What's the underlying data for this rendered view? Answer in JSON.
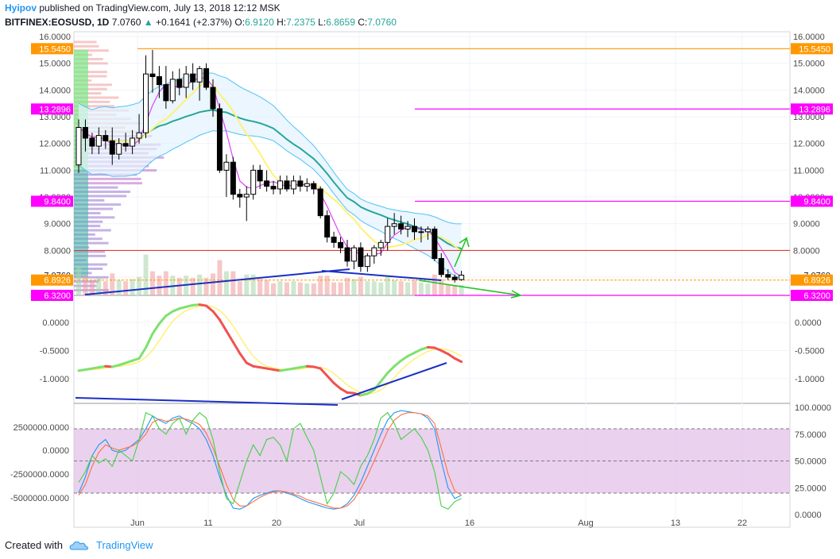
{
  "header": {
    "author": "Hyipov",
    "published_text": "published on TradingView.com, July 13, 2018 12:12 MSK",
    "symbol": "BITFINEX:EOSUSD, 1D",
    "last": "7.0760",
    "change_arrow": "▲",
    "change": "+0.1641 (+2.37%)",
    "o_label": "O:",
    "o_value": "6.9120",
    "h_label": "H:",
    "h_value": "7.2375",
    "l_label": "L:",
    "l_value": "6.8659",
    "c_label": "C:",
    "c_value": "7.0760"
  },
  "colors": {
    "up": "#26a69a",
    "down": "#000000",
    "orange": "#ff9800",
    "magenta": "#ff00ff",
    "red_line": "#e53935",
    "blue_trend": "#1a2fc4",
    "arrow_green": "#22c122"
  },
  "chart_data": [
    {
      "type": "candlestick",
      "name": "EOSUSD daily price",
      "ylim": [
        6.32,
        16.0
      ],
      "y_ticks": [
        "16.0000",
        "15.0000",
        "14.0000",
        "13.0000",
        "12.0000",
        "11.0000",
        "10.0000",
        "9.0000",
        "8.0000",
        "7.0000"
      ],
      "x_ticks": [
        "Jun",
        "11",
        "20",
        "Jul",
        "16",
        "Aug",
        "13",
        "22"
      ],
      "price_labels": [
        {
          "text": "15.5450",
          "value": 15.545,
          "color": "#ff9800"
        },
        {
          "text": "13.2896",
          "value": 13.2896,
          "color": "#ff00ff"
        },
        {
          "text": "9.8400",
          "value": 9.84,
          "color": "#ff00ff"
        },
        {
          "text": "7.0760",
          "value": 7.076,
          "color": "#ffffff"
        },
        {
          "text": "6.8926",
          "value": 6.8926,
          "color": "#ff9800"
        },
        {
          "text": "6.3200",
          "value": 6.32,
          "color": "#ff00ff"
        }
      ],
      "horizontal_lines": [
        {
          "value": 15.545,
          "color": "#ff9800"
        },
        {
          "value": 13.2896,
          "color": "#ff00ff"
        },
        {
          "value": 9.84,
          "color": "#ff00ff"
        },
        {
          "value": 8.0,
          "color": "#e53935"
        },
        {
          "value": 6.8926,
          "color": "#ff9800"
        },
        {
          "value": 6.32,
          "color": "#ff00ff"
        }
      ],
      "candles": [
        {
          "o": 11.2,
          "h": 12.9,
          "l": 10.9,
          "c": 12.6
        },
        {
          "o": 12.6,
          "h": 12.9,
          "l": 11.7,
          "c": 12.2
        },
        {
          "o": 12.2,
          "h": 12.4,
          "l": 11.6,
          "c": 11.9
        },
        {
          "o": 11.9,
          "h": 12.6,
          "l": 11.6,
          "c": 12.3
        },
        {
          "o": 12.3,
          "h": 12.5,
          "l": 11.8,
          "c": 12.1
        },
        {
          "o": 12.1,
          "h": 12.6,
          "l": 11.2,
          "c": 11.6
        },
        {
          "o": 11.6,
          "h": 12.2,
          "l": 11.4,
          "c": 12.0
        },
        {
          "o": 12.0,
          "h": 12.4,
          "l": 11.7,
          "c": 11.9
        },
        {
          "o": 11.9,
          "h": 12.5,
          "l": 11.6,
          "c": 12.2
        },
        {
          "o": 12.2,
          "h": 13.1,
          "l": 12.0,
          "c": 12.4
        },
        {
          "o": 12.4,
          "h": 15.3,
          "l": 12.2,
          "c": 14.6
        },
        {
          "o": 14.6,
          "h": 15.5,
          "l": 13.9,
          "c": 14.5
        },
        {
          "o": 14.5,
          "h": 14.9,
          "l": 13.7,
          "c": 14.2
        },
        {
          "o": 14.2,
          "h": 14.9,
          "l": 13.3,
          "c": 13.6
        },
        {
          "o": 13.6,
          "h": 14.7,
          "l": 13.5,
          "c": 14.4
        },
        {
          "o": 14.4,
          "h": 14.8,
          "l": 13.8,
          "c": 14.1
        },
        {
          "o": 14.1,
          "h": 14.9,
          "l": 13.7,
          "c": 14.6
        },
        {
          "o": 14.6,
          "h": 15.0,
          "l": 14.0,
          "c": 14.3
        },
        {
          "o": 14.3,
          "h": 14.9,
          "l": 13.6,
          "c": 14.8
        },
        {
          "o": 14.8,
          "h": 15.0,
          "l": 14.0,
          "c": 14.1
        },
        {
          "o": 14.1,
          "h": 14.4,
          "l": 13.0,
          "c": 13.3
        },
        {
          "o": 13.3,
          "h": 13.5,
          "l": 10.9,
          "c": 11.0
        },
        {
          "o": 11.0,
          "h": 11.6,
          "l": 10.0,
          "c": 11.3
        },
        {
          "o": 11.3,
          "h": 11.5,
          "l": 9.9,
          "c": 10.1
        },
        {
          "o": 10.1,
          "h": 10.3,
          "l": 9.6,
          "c": 10.0
        },
        {
          "o": 10.0,
          "h": 10.4,
          "l": 9.1,
          "c": 10.1
        },
        {
          "o": 10.1,
          "h": 11.2,
          "l": 9.9,
          "c": 11.0
        },
        {
          "o": 11.0,
          "h": 11.2,
          "l": 10.3,
          "c": 10.6
        },
        {
          "o": 10.6,
          "h": 11.0,
          "l": 10.2,
          "c": 10.4
        },
        {
          "o": 10.4,
          "h": 10.6,
          "l": 10.1,
          "c": 10.3
        },
        {
          "o": 10.3,
          "h": 10.8,
          "l": 10.1,
          "c": 10.6
        },
        {
          "o": 10.6,
          "h": 10.8,
          "l": 10.2,
          "c": 10.3
        },
        {
          "o": 10.3,
          "h": 10.8,
          "l": 10.1,
          "c": 10.6
        },
        {
          "o": 10.6,
          "h": 10.8,
          "l": 10.2,
          "c": 10.4
        },
        {
          "o": 10.4,
          "h": 10.7,
          "l": 10.2,
          "c": 10.5
        },
        {
          "o": 10.5,
          "h": 10.6,
          "l": 10.1,
          "c": 10.3
        },
        {
          "o": 10.3,
          "h": 10.4,
          "l": 9.2,
          "c": 9.3
        },
        {
          "o": 9.3,
          "h": 9.5,
          "l": 8.3,
          "c": 8.5
        },
        {
          "o": 8.5,
          "h": 8.7,
          "l": 8.1,
          "c": 8.3
        },
        {
          "o": 8.3,
          "h": 8.5,
          "l": 7.9,
          "c": 8.1
        },
        {
          "o": 8.1,
          "h": 8.4,
          "l": 7.4,
          "c": 7.6
        },
        {
          "o": 7.6,
          "h": 8.2,
          "l": 7.3,
          "c": 8.1
        },
        {
          "o": 8.1,
          "h": 8.3,
          "l": 7.2,
          "c": 7.4
        },
        {
          "o": 7.4,
          "h": 7.9,
          "l": 7.2,
          "c": 7.8
        },
        {
          "o": 7.8,
          "h": 8.2,
          "l": 7.5,
          "c": 8.1
        },
        {
          "o": 8.1,
          "h": 8.4,
          "l": 7.8,
          "c": 8.3
        },
        {
          "o": 8.3,
          "h": 9.2,
          "l": 8.0,
          "c": 8.9
        },
        {
          "o": 8.9,
          "h": 9.4,
          "l": 8.6,
          "c": 9.0
        },
        {
          "o": 9.0,
          "h": 9.3,
          "l": 8.6,
          "c": 8.8
        },
        {
          "o": 8.8,
          "h": 9.1,
          "l": 8.5,
          "c": 8.9
        },
        {
          "o": 8.9,
          "h": 9.2,
          "l": 8.4,
          "c": 8.7
        },
        {
          "o": 8.7,
          "h": 8.9,
          "l": 8.3,
          "c": 8.7
        },
        {
          "o": 8.7,
          "h": 8.9,
          "l": 8.4,
          "c": 8.8
        },
        {
          "o": 8.8,
          "h": 8.9,
          "l": 7.6,
          "c": 7.7
        },
        {
          "o": 7.7,
          "h": 7.9,
          "l": 7.0,
          "c": 7.1
        },
        {
          "o": 7.1,
          "h": 7.3,
          "l": 6.9,
          "c": 7.0
        },
        {
          "o": 7.0,
          "h": 7.1,
          "l": 6.8,
          "c": 6.91
        },
        {
          "o": 6.912,
          "h": 7.2375,
          "l": 6.8659,
          "c": 7.076
        }
      ]
    },
    {
      "type": "line",
      "name": "oscillator",
      "ylim": [
        -1.4,
        0.4
      ],
      "y_ticks": [
        "0.0000",
        "-0.5000",
        "-1.0000"
      ],
      "series": [
        {
          "values": [
            -0.86,
            -0.84,
            -0.82,
            -0.8,
            -0.78,
            -0.79,
            -0.76,
            -0.72,
            -0.68,
            -0.64,
            -0.45,
            -0.2,
            -0.02,
            0.12,
            0.2,
            0.25,
            0.28,
            0.31,
            0.32,
            0.3,
            0.2,
            0.05,
            -0.15,
            -0.35,
            -0.55,
            -0.72,
            -0.78,
            -0.8,
            -0.82,
            -0.84,
            -0.86,
            -0.84,
            -0.82,
            -0.8,
            -0.78,
            -0.79,
            -0.82,
            -0.95,
            -1.08,
            -1.18,
            -1.25,
            -1.26,
            -1.3,
            -1.27,
            -1.2,
            -1.05,
            -0.9,
            -0.78,
            -0.68,
            -0.6,
            -0.54,
            -0.48,
            -0.44,
            -0.45,
            -0.5,
            -0.56,
            -0.64,
            -0.7
          ]
        }
      ]
    },
    {
      "type": "line",
      "name": "stochastic",
      "ylim": [
        0,
        100
      ],
      "y_ticks_right": [
        "100.0000",
        "75.0000",
        "50.0000",
        "25.0000",
        "0.0000"
      ],
      "y_ticks_left": [
        "2500000.0000",
        "0.0000",
        "-2500000.0000",
        "-5000000.0000"
      ],
      "band": [
        20,
        80
      ],
      "series": [
        {
          "values": [
            20,
            35,
            55,
            65,
            70,
            60,
            58,
            60,
            65,
            70,
            80,
            92,
            88,
            85,
            90,
            92,
            88,
            85,
            80,
            70,
            55,
            35,
            18,
            6,
            5,
            8,
            15,
            18,
            20,
            22,
            22,
            20,
            18,
            15,
            12,
            10,
            8,
            6,
            5,
            6,
            10,
            18,
            30,
            45,
            60,
            75,
            88,
            95,
            97,
            96,
            95,
            94,
            90,
            80,
            50,
            25,
            15,
            18
          ]
        },
        {
          "values": [
            18,
            28,
            45,
            58,
            65,
            62,
            60,
            62,
            64,
            68,
            75,
            86,
            89,
            87,
            88,
            90,
            89,
            87,
            84,
            76,
            62,
            45,
            28,
            14,
            8,
            8,
            12,
            16,
            19,
            21,
            22,
            21,
            19,
            17,
            14,
            12,
            10,
            8,
            6,
            6,
            8,
            14,
            24,
            36,
            50,
            64,
            78,
            88,
            93,
            95,
            95,
            94,
            92,
            85,
            62,
            38,
            22,
            18
          ]
        },
        {
          "values": [
            30,
            40,
            55,
            48,
            52,
            45,
            60,
            55,
            50,
            70,
            95,
            92,
            80,
            75,
            85,
            90,
            75,
            88,
            95,
            90,
            70,
            40,
            15,
            10,
            30,
            50,
            65,
            55,
            70,
            72,
            65,
            50,
            80,
            85,
            72,
            60,
            35,
            10,
            20,
            40,
            35,
            28,
            45,
            55,
            70,
            90,
            95,
            85,
            70,
            75,
            80,
            72,
            60,
            40,
            8,
            5,
            12,
            15
          ]
        }
      ]
    }
  ],
  "footer": {
    "created_with": "Created with",
    "brand": "TradingView"
  }
}
